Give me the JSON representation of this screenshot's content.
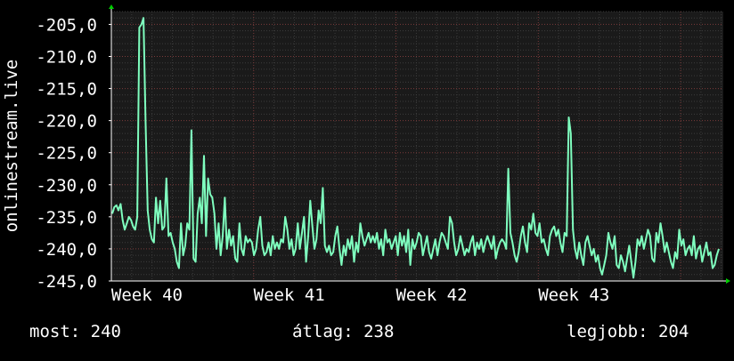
{
  "chart_data": {
    "type": "line",
    "ylabel": "onlinestream.live",
    "ylim": [
      -245,
      -203
    ],
    "y_ticks": [
      -205,
      -210,
      -215,
      -220,
      -225,
      -230,
      -235,
      -240,
      -245
    ],
    "y_tick_labels": [
      "-205,0",
      "-210,0",
      "-215,0",
      "-220,0",
      "-225,0",
      "-230,0",
      "-235,0",
      "-240,0",
      "-245,0"
    ],
    "x_labels": [
      "Week 40",
      "Week 41",
      "Week 42",
      "Week 43"
    ],
    "x_label_positions_week": [
      0.25,
      1.25,
      2.25,
      3.25
    ],
    "week_span": 4.3,
    "grid": true,
    "colors": {
      "background": "#000000",
      "plot_background": "#1a1a1a",
      "grid_major": "#7a3a3a",
      "grid_minor": "#3c3c3c",
      "line": "#7fffbf",
      "axis": "#ffffff",
      "arrow": "#00cc00"
    },
    "series": [
      {
        "values": [
          -234.5,
          -233.5,
          -233.2,
          -234.0,
          -233.0,
          -235.5,
          -237.0,
          -236.0,
          -235.0,
          -235.5,
          -236.5,
          -237.0,
          -235.0,
          -205.5,
          -205.0,
          -204.0,
          -220.0,
          -234.0,
          -237.0,
          -238.5,
          -239.0,
          -232.0,
          -236.0,
          -232.5,
          -237.0,
          -236.5,
          -229.0,
          -238.0,
          -237.5,
          -239.0,
          -240.0,
          -242.0,
          -243.0,
          -236.0,
          -241.0,
          -239.5,
          -236.0,
          -237.0,
          -221.5,
          -241.5,
          -242.0,
          -234.5,
          -232.0,
          -236.0,
          -225.5,
          -238.0,
          -229.0,
          -231.5,
          -232.0,
          -234.5,
          -240.0,
          -236.0,
          -241.0,
          -238.0,
          -232.0,
          -240.0,
          -237.0,
          -239.5,
          -238.0,
          -241.5,
          -242.0,
          -236.0,
          -240.0,
          -241.0,
          -238.0,
          -239.0,
          -238.5,
          -239.0,
          -241.0,
          -240.0,
          -237.0,
          -235.0,
          -239.5,
          -241.0,
          -240.5,
          -239.0,
          -241.0,
          -238.0,
          -240.0,
          -239.0,
          -240.0,
          -238.5,
          -239.0,
          -235.0,
          -237.0,
          -240.0,
          -238.5,
          -241.0,
          -240.0,
          -236.0,
          -240.0,
          -237.5,
          -235.0,
          -242.0,
          -238.0,
          -232.5,
          -236.5,
          -240.0,
          -238.5,
          -234.0,
          -236.0,
          -230.5,
          -239.5,
          -240.5,
          -239.5,
          -241.0,
          -240.5,
          -238.0,
          -236.5,
          -240.0,
          -242.5,
          -239.5,
          -241.0,
          -238.5,
          -240.0,
          -238.0,
          -242.0,
          -239.0,
          -240.5,
          -236.0,
          -238.0,
          -239.5,
          -238.5,
          -237.5,
          -239.0,
          -238.0,
          -239.0,
          -237.5,
          -240.0,
          -238.5,
          -241.0,
          -237.0,
          -239.0,
          -238.5,
          -240.0,
          -239.0,
          -238.0,
          -241.0,
          -237.5,
          -239.5,
          -238.0,
          -240.5,
          -237.0,
          -242.5,
          -238.5,
          -240.0,
          -239.0,
          -237.5,
          -238.0,
          -241.0,
          -239.5,
          -238.0,
          -240.5,
          -241.5,
          -240.0,
          -238.5,
          -241.0,
          -239.0,
          -237.5,
          -238.0,
          -239.0,
          -240.0,
          -235.0,
          -236.0,
          -239.0,
          -241.0,
          -240.0,
          -238.0,
          -239.5,
          -241.0,
          -240.0,
          -240.5,
          -239.0,
          -238.0,
          -241.0,
          -239.0,
          -240.0,
          -238.5,
          -240.5,
          -239.0,
          -238.0,
          -239.0,
          -240.0,
          -238.0,
          -241.5,
          -240.0,
          -239.0,
          -238.5,
          -239.0,
          -240.0,
          -227.5,
          -237.5,
          -239.0,
          -241.0,
          -242.0,
          -240.5,
          -238.0,
          -236.5,
          -239.0,
          -240.5,
          -236.0,
          -237.0,
          -234.5,
          -237.5,
          -238.0,
          -236.0,
          -239.0,
          -238.5,
          -240.0,
          -241.0,
          -238.0,
          -237.0,
          -236.5,
          -238.0,
          -237.0,
          -239.0,
          -240.5,
          -237.5,
          -238.0,
          -219.5,
          -222.0,
          -237.0,
          -240.0,
          -241.5,
          -239.0,
          -241.0,
          -242.5,
          -239.0,
          -238.0,
          -239.5,
          -241.0,
          -240.0,
          -242.0,
          -241.0,
          -243.0,
          -244.0,
          -242.5,
          -241.0,
          -237.5,
          -239.0,
          -240.0,
          -238.0,
          -242.5,
          -243.0,
          -241.0,
          -242.0,
          -243.5,
          -241.5,
          -239.5,
          -242.0,
          -244.5,
          -242.0,
          -238.5,
          -239.5,
          -238.0,
          -240.0,
          -238.5,
          -237.0,
          -238.0,
          -241.5,
          -242.0,
          -237.5,
          -239.0,
          -236.0,
          -238.0,
          -240.5,
          -239.0,
          -240.5,
          -242.0,
          -243.0,
          -240.5,
          -241.5,
          -237.0,
          -239.5,
          -238.5,
          -241.0,
          -240.0,
          -239.5,
          -241.0,
          -238.0,
          -241.5,
          -240.0,
          -239.5,
          -242.0,
          -240.5,
          -239.0,
          -241.0,
          -240.5,
          -243.0,
          -242.5,
          -241.0,
          -240.0
        ]
      }
    ]
  },
  "stats": {
    "current": "most: 240",
    "average": "átlag: 238",
    "best": "legjobb: 204"
  }
}
